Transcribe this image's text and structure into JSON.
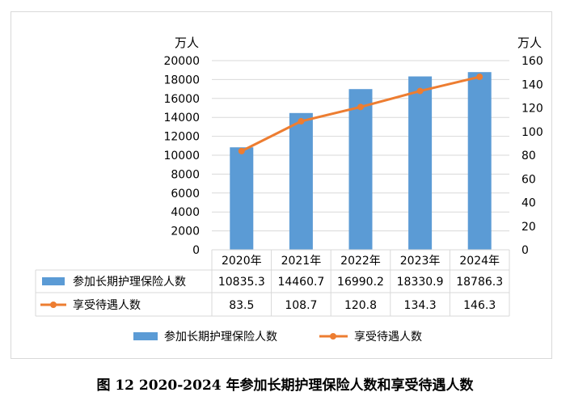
{
  "chart_data": {
    "type": "bar",
    "categories": [
      "2020年",
      "2021年",
      "2022年",
      "2023年",
      "2024年"
    ],
    "series": [
      {
        "name": "参加长期护理保险人数",
        "type": "bar",
        "axis": "left",
        "color": "#5b9bd5",
        "values": [
          10835.3,
          14460.7,
          16990.2,
          18330.9,
          18786.3
        ],
        "value_labels": [
          "10835.3",
          "14460.7",
          "16990.2",
          "18330.9",
          "18786.3"
        ]
      },
      {
        "name": "享受待遇人数",
        "type": "line",
        "axis": "right",
        "color": "#ed7d31",
        "values": [
          83.5,
          108.7,
          120.8,
          134.3,
          146.3
        ],
        "value_labels": [
          "83.5",
          "108.7",
          "120.8",
          "134.3",
          "146.3"
        ]
      }
    ],
    "left_axis": {
      "unit": "万人",
      "ylim": [
        0,
        20000
      ],
      "ticks": [
        "0",
        "2000",
        "4000",
        "6000",
        "8000",
        "10000",
        "12000",
        "14000",
        "16000",
        "18000",
        "20000"
      ]
    },
    "right_axis": {
      "unit": "万人",
      "ylim": [
        0,
        160
      ],
      "ticks": [
        "0",
        "20",
        "40",
        "60",
        "80",
        "100",
        "120",
        "140",
        "160"
      ]
    },
    "grid": true,
    "legend": "bottom",
    "data_table": true
  },
  "caption": "图 12   2020-2024 年参加长期护理保险人数和享受待遇人数"
}
